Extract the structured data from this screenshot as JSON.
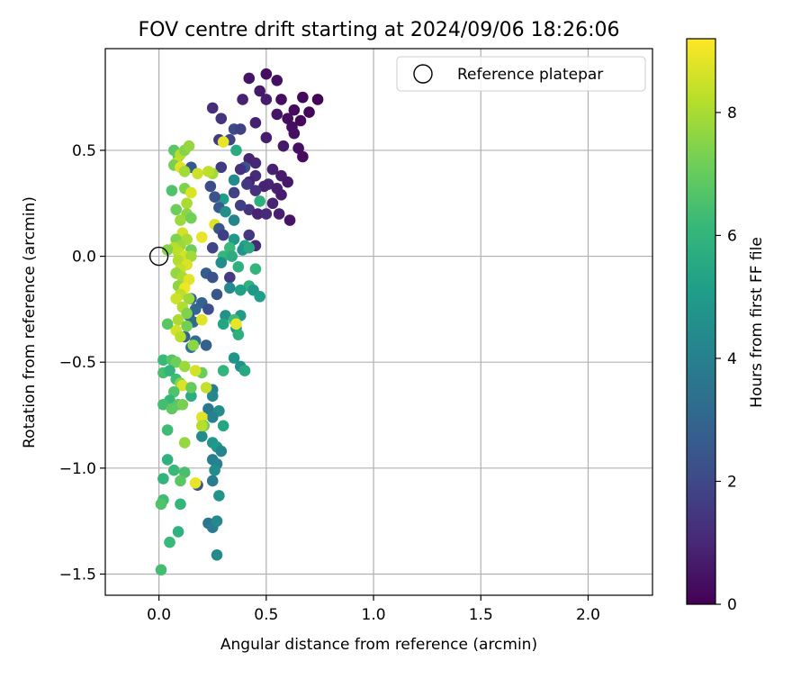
{
  "chart_data": {
    "type": "scatter",
    "title": "FOV centre drift starting at 2024/09/06 18:26:06",
    "xlabel": "Angular distance from reference (arcmin)",
    "ylabel": "Rotation from reference (arcmin)",
    "xlim": [
      -0.25,
      2.3
    ],
    "ylim": [
      -1.6,
      0.98
    ],
    "xticks": [
      0.0,
      0.5,
      1.0,
      1.5,
      2.0
    ],
    "xtick_labels": [
      "0.0",
      "0.5",
      "1.0",
      "1.5",
      "2.0"
    ],
    "yticks": [
      -1.5,
      -1.0,
      -0.5,
      0.0,
      0.5
    ],
    "ytick_labels": [
      "−1.5",
      "−1.0",
      "−0.5",
      "0.0",
      "0.5"
    ],
    "grid": true,
    "legend": {
      "position": "top-right",
      "entries": [
        "Reference platepar"
      ]
    },
    "reference_point": {
      "x": 0.0,
      "y": 0.0,
      "label": "Reference platepar"
    },
    "colorbar": {
      "label": "Hours from first FF file",
      "range": [
        0,
        9.2
      ],
      "ticks": [
        0,
        2,
        4,
        6,
        8
      ],
      "tick_labels": [
        "0",
        "2",
        "4",
        "6",
        "8"
      ],
      "colormap": "viridis",
      "colormap_stops": [
        "#440154",
        "#482878",
        "#3e4a89",
        "#31688e",
        "#26828e",
        "#1f9e89",
        "#35b779",
        "#6ece58",
        "#b5de2b",
        "#fde725"
      ]
    },
    "points": [
      [
        0.5,
        0.86,
        0.3
      ],
      [
        0.42,
        0.84,
        0.5
      ],
      [
        0.55,
        0.83,
        0.4
      ],
      [
        0.47,
        0.78,
        0.6
      ],
      [
        0.67,
        0.75,
        0.2
      ],
      [
        0.74,
        0.74,
        0.1
      ],
      [
        0.39,
        0.74,
        0.9
      ],
      [
        0.57,
        0.74,
        0.3
      ],
      [
        0.5,
        0.74,
        0.7
      ],
      [
        0.25,
        0.7,
        1.2
      ],
      [
        0.63,
        0.69,
        0.2
      ],
      [
        0.7,
        0.68,
        0.1
      ],
      [
        0.55,
        0.67,
        0.5
      ],
      [
        0.6,
        0.65,
        0.3
      ],
      [
        0.66,
        0.64,
        0.2
      ],
      [
        0.29,
        0.65,
        1.4
      ],
      [
        0.45,
        0.63,
        0.8
      ],
      [
        0.62,
        0.61,
        0.3
      ],
      [
        0.35,
        0.6,
        2.1
      ],
      [
        0.38,
        0.6,
        1.8
      ],
      [
        0.63,
        0.58,
        0.4
      ],
      [
        0.5,
        0.56,
        0.7
      ],
      [
        0.28,
        0.55,
        1.6
      ],
      [
        0.33,
        0.55,
        1.9
      ],
      [
        0.3,
        0.54,
        8.9
      ],
      [
        0.58,
        0.52,
        0.6
      ],
      [
        0.65,
        0.51,
        0.4
      ],
      [
        0.36,
        0.5,
        5.6
      ],
      [
        0.42,
        0.46,
        0.9
      ],
      [
        0.67,
        0.47,
        0.3
      ],
      [
        0.45,
        0.44,
        1.0
      ],
      [
        0.4,
        0.42,
        2.4
      ],
      [
        0.53,
        0.41,
        0.8
      ],
      [
        0.29,
        0.42,
        1.6
      ],
      [
        0.25,
        0.39,
        7.9
      ],
      [
        0.15,
        0.42,
        2.6
      ],
      [
        0.38,
        0.41,
        1.3
      ],
      [
        0.45,
        0.38,
        1.1
      ],
      [
        0.57,
        0.38,
        0.7
      ],
      [
        0.42,
        0.35,
        0.9
      ],
      [
        0.51,
        0.34,
        1.0
      ],
      [
        0.6,
        0.35,
        0.6
      ],
      [
        0.35,
        0.36,
        4.4
      ],
      [
        0.41,
        0.34,
        1.5
      ],
      [
        0.49,
        0.33,
        0.9
      ],
      [
        0.55,
        0.32,
        0.8
      ],
      [
        0.24,
        0.33,
        2.1
      ],
      [
        0.45,
        0.31,
        1.3
      ],
      [
        0.57,
        0.29,
        0.7
      ],
      [
        0.35,
        0.3,
        1.8
      ],
      [
        0.3,
        0.27,
        5.1
      ],
      [
        0.26,
        0.28,
        2.3
      ],
      [
        0.47,
        0.26,
        5.8
      ],
      [
        0.53,
        0.25,
        0.9
      ],
      [
        0.28,
        0.23,
        2.6
      ],
      [
        0.42,
        0.22,
        1.4
      ],
      [
        0.38,
        0.24,
        1.7
      ],
      [
        0.46,
        0.2,
        0.9
      ],
      [
        0.5,
        0.2,
        1.1
      ],
      [
        0.56,
        0.2,
        0.8
      ],
      [
        0.31,
        0.21,
        4.6
      ],
      [
        0.61,
        0.17,
        0.5
      ],
      [
        0.35,
        0.17,
        4.2
      ],
      [
        0.26,
        0.15,
        8.7
      ],
      [
        0.28,
        0.13,
        2.4
      ],
      [
        0.3,
        0.1,
        1.7
      ],
      [
        0.42,
        0.1,
        1.5
      ],
      [
        0.35,
        0.08,
        4.9
      ],
      [
        0.45,
        0.05,
        1.1
      ],
      [
        0.4,
        0.05,
        5.3
      ],
      [
        0.25,
        0.04,
        1.9
      ],
      [
        0.33,
        0.04,
        6.2
      ],
      [
        0.39,
        0.03,
        4.8
      ],
      [
        0.42,
        0.04,
        5.5
      ],
      [
        0.3,
        0.0,
        6.1
      ],
      [
        0.34,
        0.0,
        5.7
      ],
      [
        0.29,
        -0.03,
        4.5
      ],
      [
        0.37,
        -0.05,
        5.8
      ],
      [
        0.45,
        -0.06,
        6.0
      ],
      [
        0.22,
        -0.08,
        2.7
      ],
      [
        0.25,
        -0.1,
        2.3
      ],
      [
        0.33,
        -0.1,
        1.6
      ],
      [
        0.42,
        -0.14,
        5.9
      ],
      [
        0.44,
        -0.16,
        4.9
      ],
      [
        0.47,
        -0.19,
        5.1
      ],
      [
        0.33,
        -0.15,
        4.3
      ],
      [
        0.38,
        -0.16,
        5.2
      ],
      [
        0.27,
        -0.18,
        2.5
      ],
      [
        0.2,
        -0.22,
        2.9
      ],
      [
        0.23,
        -0.25,
        2.2
      ],
      [
        0.15,
        -0.2,
        2.8
      ],
      [
        0.17,
        -0.25,
        3.1
      ],
      [
        0.14,
        -0.28,
        2.6
      ],
      [
        0.16,
        -0.31,
        3.2
      ],
      [
        0.38,
        -0.28,
        5.0
      ],
      [
        0.31,
        -0.28,
        4.7
      ],
      [
        0.35,
        -0.3,
        6.3
      ],
      [
        0.3,
        -0.32,
        5.4
      ],
      [
        0.36,
        -0.34,
        4.9
      ],
      [
        0.37,
        -0.37,
        5.8
      ],
      [
        0.12,
        -0.38,
        2.9
      ],
      [
        0.17,
        -0.4,
        3.3
      ],
      [
        0.22,
        -0.42,
        2.8
      ],
      [
        0.15,
        -0.43,
        3.6
      ],
      [
        0.35,
        -0.48,
        4.8
      ],
      [
        0.38,
        -0.52,
        4.6
      ],
      [
        0.3,
        -0.54,
        6.0
      ],
      [
        0.4,
        -0.54,
        5.5
      ],
      [
        0.2,
        -0.55,
        7.1
      ],
      [
        0.25,
        -0.63,
        3.9
      ],
      [
        0.25,
        -0.66,
        4.3
      ],
      [
        0.15,
        -0.66,
        5.7
      ],
      [
        0.23,
        -0.72,
        3.7
      ],
      [
        0.28,
        -0.73,
        4.5
      ],
      [
        0.25,
        -0.76,
        4.0
      ],
      [
        0.3,
        -0.8,
        5.4
      ],
      [
        0.2,
        -0.85,
        4.4
      ],
      [
        0.25,
        -0.88,
        4.8
      ],
      [
        0.27,
        -0.9,
        5.0
      ],
      [
        0.29,
        -0.92,
        4.2
      ],
      [
        0.25,
        -0.96,
        3.9
      ],
      [
        0.27,
        -0.98,
        4.1
      ],
      [
        0.26,
        -1.01,
        4.5
      ],
      [
        0.25,
        -1.06,
        3.8
      ],
      [
        0.18,
        -1.08,
        2.4
      ],
      [
        0.28,
        -1.13,
        4.7
      ],
      [
        0.23,
        -1.26,
        3.6
      ],
      [
        0.25,
        -1.28,
        3.9
      ],
      [
        0.27,
        -1.25,
        4.3
      ],
      [
        0.27,
        -1.41,
        4.4
      ],
      [
        0.07,
        0.5,
        6.8
      ],
      [
        0.09,
        0.47,
        6.9
      ],
      [
        0.1,
        0.48,
        8.2
      ],
      [
        0.12,
        0.5,
        7.5
      ],
      [
        0.14,
        0.52,
        7.7
      ],
      [
        0.08,
        0.44,
        8.4
      ],
      [
        0.07,
        0.43,
        7.3
      ],
      [
        0.1,
        0.42,
        8.8
      ],
      [
        0.12,
        0.4,
        7.9
      ],
      [
        0.18,
        0.39,
        8.5
      ],
      [
        0.23,
        0.4,
        8.3
      ],
      [
        0.06,
        0.31,
        6.6
      ],
      [
        0.12,
        0.32,
        7.4
      ],
      [
        0.13,
        0.25,
        8.0
      ],
      [
        0.15,
        0.3,
        8.7
      ],
      [
        0.08,
        0.22,
        7.1
      ],
      [
        0.13,
        0.2,
        7.6
      ],
      [
        0.1,
        0.17,
        7.8
      ],
      [
        0.15,
        0.18,
        7.2
      ],
      [
        0.11,
        0.11,
        8.6
      ],
      [
        0.08,
        0.08,
        7.4
      ],
      [
        0.13,
        0.08,
        8.0
      ],
      [
        0.2,
        0.09,
        8.9
      ],
      [
        0.15,
        0.03,
        7.1
      ],
      [
        0.1,
        0.05,
        7.8
      ],
      [
        0.07,
        0.04,
        8.2
      ],
      [
        0.04,
        0.03,
        7.5
      ],
      [
        0.09,
        0.02,
        8.3
      ],
      [
        0.12,
        0.0,
        8.6
      ],
      [
        0.15,
        0.0,
        7.9
      ],
      [
        0.09,
        -0.02,
        8.1
      ],
      [
        0.13,
        -0.04,
        8.7
      ],
      [
        0.1,
        -0.06,
        8.4
      ],
      [
        0.08,
        -0.08,
        7.7
      ],
      [
        0.11,
        -0.1,
        8.0
      ],
      [
        0.14,
        -0.11,
        8.8
      ],
      [
        0.09,
        -0.14,
        7.6
      ],
      [
        0.12,
        -0.15,
        9.0
      ],
      [
        0.1,
        -0.18,
        8.3
      ],
      [
        0.14,
        -0.2,
        7.8
      ],
      [
        0.08,
        -0.2,
        8.5
      ],
      [
        0.11,
        -0.24,
        8.1
      ],
      [
        0.13,
        -0.27,
        7.4
      ],
      [
        0.09,
        -0.3,
        8.0
      ],
      [
        0.13,
        -0.33,
        7.2
      ],
      [
        0.08,
        -0.35,
        8.6
      ],
      [
        0.04,
        -0.32,
        6.8
      ],
      [
        0.1,
        -0.38,
        8.2
      ],
      [
        0.2,
        -0.3,
        8.8
      ],
      [
        0.36,
        -0.32,
        8.9
      ],
      [
        0.16,
        -0.42,
        7.6
      ],
      [
        0.02,
        -0.49,
        6.2
      ],
      [
        0.06,
        -0.49,
        6.7
      ],
      [
        0.08,
        -0.5,
        7.1
      ],
      [
        0.02,
        -0.55,
        6.5
      ],
      [
        0.05,
        -0.54,
        6.0
      ],
      [
        0.12,
        -0.52,
        7.8
      ],
      [
        0.17,
        -0.54,
        8.6
      ],
      [
        0.08,
        -0.58,
        6.3
      ],
      [
        0.1,
        -0.6,
        7.5
      ],
      [
        0.11,
        -0.61,
        8.7
      ],
      [
        0.15,
        -0.62,
        7.0
      ],
      [
        0.22,
        -0.62,
        8.4
      ],
      [
        0.07,
        -0.64,
        6.6
      ],
      [
        0.05,
        -0.68,
        6.1
      ],
      [
        0.09,
        -0.7,
        6.8
      ],
      [
        0.11,
        -0.7,
        7.3
      ],
      [
        0.02,
        -0.7,
        6.4
      ],
      [
        0.06,
        -0.72,
        6.9
      ],
      [
        0.2,
        -0.76,
        8.8
      ],
      [
        0.21,
        -0.8,
        7.1
      ],
      [
        0.2,
        -0.8,
        8.2
      ],
      [
        0.04,
        -0.82,
        6.3
      ],
      [
        0.12,
        -0.88,
        7.7
      ],
      [
        0.04,
        -0.96,
        5.9
      ],
      [
        0.07,
        -1.01,
        6.2
      ],
      [
        0.12,
        -1.02,
        6.5
      ],
      [
        0.02,
        -1.05,
        6.0
      ],
      [
        0.1,
        -1.06,
        6.8
      ],
      [
        0.17,
        -1.07,
        8.9
      ],
      [
        0.02,
        -1.15,
        6.3
      ],
      [
        0.01,
        -1.17,
        6.6
      ],
      [
        0.1,
        -1.17,
        6.1
      ],
      [
        0.09,
        -1.3,
        5.9
      ],
      [
        0.05,
        -1.35,
        6.2
      ],
      [
        0.01,
        -1.48,
        6.4
      ]
    ]
  }
}
